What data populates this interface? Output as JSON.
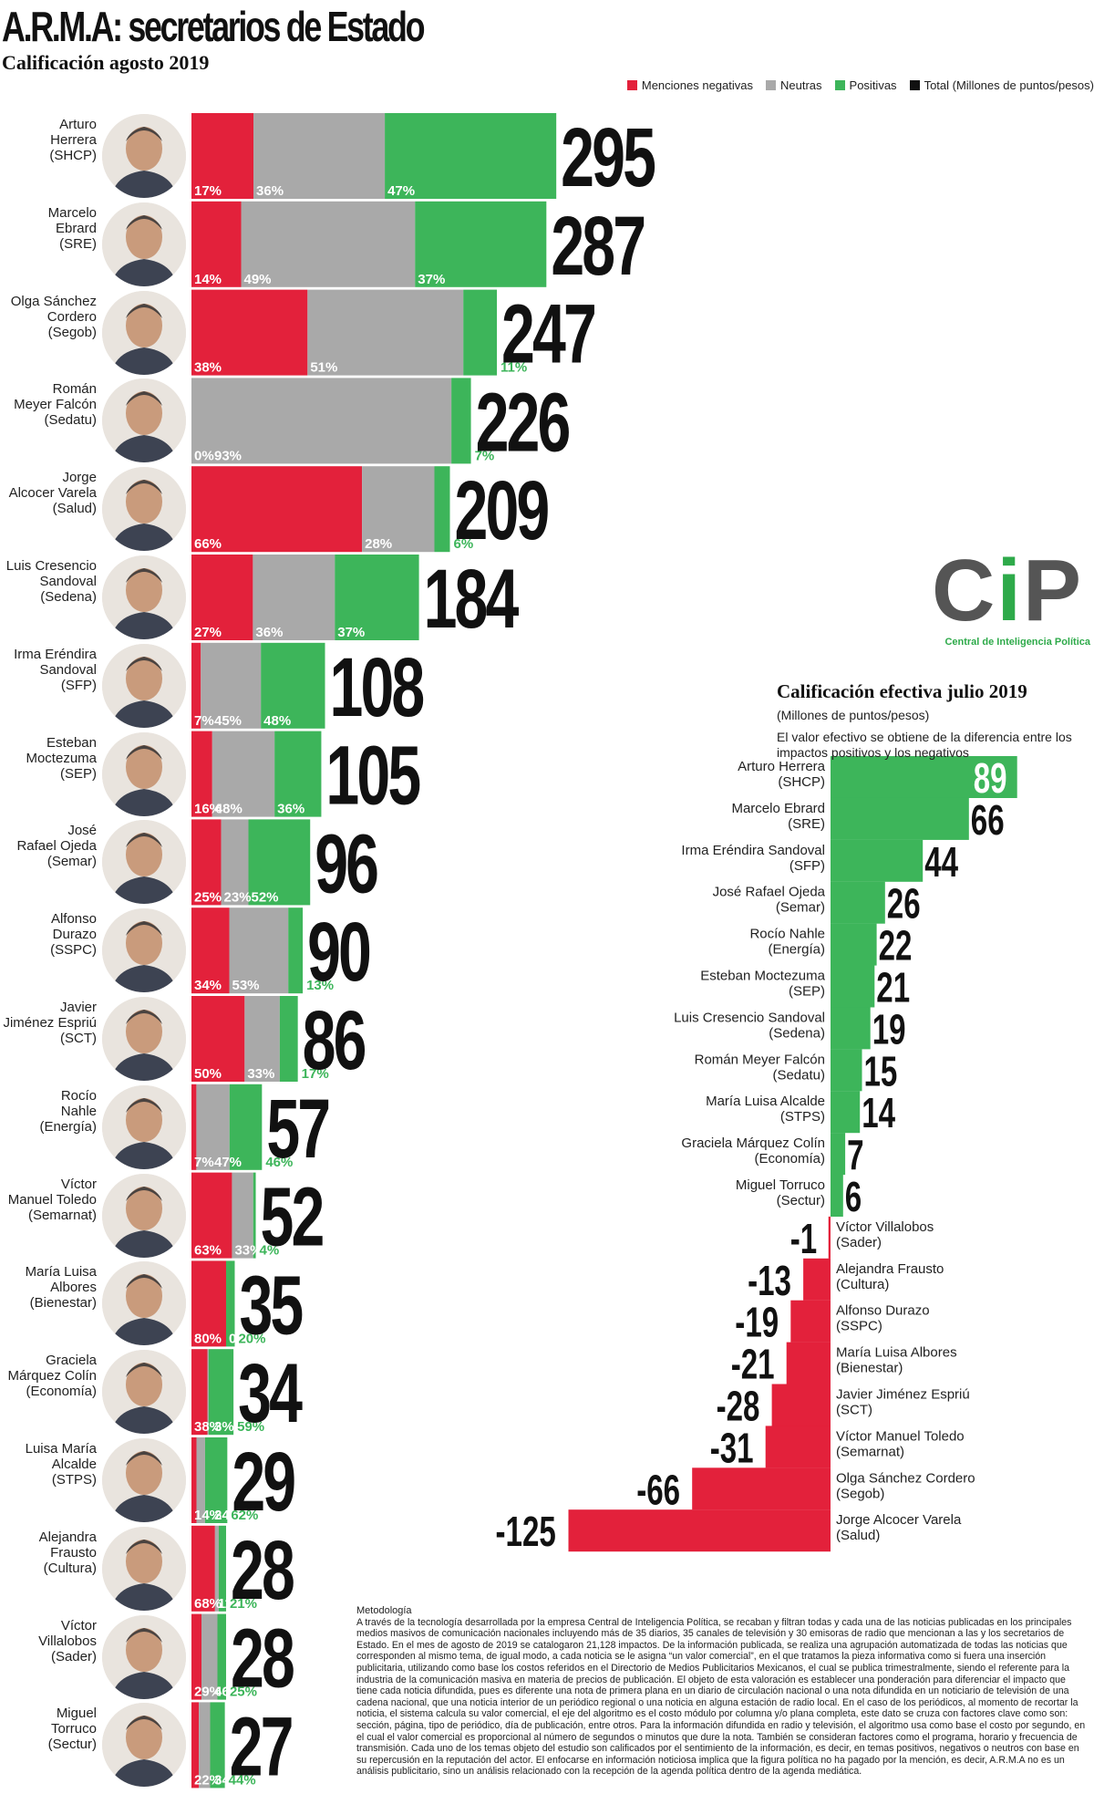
{
  "title": "A.R.M.A: secretarios de Estado",
  "subtitle": "Calificación agosto 2019",
  "legend": [
    {
      "label": "Menciones negativas",
      "color": "#e3213b"
    },
    {
      "label": "Neutras",
      "color": "#a9a9a9"
    },
    {
      "label": "Positivas",
      "color": "#3db55a"
    },
    {
      "label": "Total (Millones de puntos/pesos)",
      "color": "#111111"
    }
  ],
  "colors": {
    "negative": "#e3213b",
    "neutral": "#a9a9a9",
    "positive": "#3db55a",
    "total": "#111111"
  },
  "logo": {
    "text": "CiP",
    "subtitle": "Central de Inteligencia Política"
  },
  "chart_data": [
    {
      "type": "bar",
      "orientation": "horizontal",
      "stacked": true,
      "series_names": [
        "Menciones negativas",
        "Neutras",
        "Positivas"
      ],
      "total_label": "Total (Millones de puntos/pesos)",
      "rows": [
        {
          "name": "Arturo Herrera (SHCP)",
          "label_lines": [
            "Arturo",
            "Herrera",
            "(SHCP)"
          ],
          "total": 295,
          "negative": 17,
          "neutral": 36,
          "positive": 47
        },
        {
          "name": "Marcelo Ebrard (SRE)",
          "label_lines": [
            "Marcelo",
            "Ebrard",
            "(SRE)"
          ],
          "total": 287,
          "negative": 14,
          "neutral": 49,
          "positive": 37
        },
        {
          "name": "Olga Sánchez Cordero (Segob)",
          "label_lines": [
            "Olga Sánchez",
            "Cordero",
            "(Segob)"
          ],
          "total": 247,
          "negative": 38,
          "neutral": 51,
          "positive": 11
        },
        {
          "name": "Román Meyer Falcón (Sedatu)",
          "label_lines": [
            "Román",
            "Meyer Falcón",
            "(Sedatu)"
          ],
          "total": 226,
          "negative": 0,
          "neutral": 93,
          "positive": 7
        },
        {
          "name": "Jorge Alcocer Varela (Salud)",
          "label_lines": [
            "Jorge",
            "Alcocer Varela",
            "(Salud)"
          ],
          "total": 209,
          "negative": 66,
          "neutral": 28,
          "positive": 6
        },
        {
          "name": "Luis Cresencio Sandoval (Sedena)",
          "label_lines": [
            "Luis Cresencio",
            "Sandoval",
            "(Sedena)"
          ],
          "total": 184,
          "negative": 27,
          "neutral": 36,
          "positive": 37
        },
        {
          "name": "Irma Eréndira Sandoval (SFP)",
          "label_lines": [
            "Irma Eréndira",
            "Sandoval",
            "(SFP)"
          ],
          "total": 108,
          "negative": 7,
          "neutral": 45,
          "positive": 48
        },
        {
          "name": "Esteban Moctezuma (SEP)",
          "label_lines": [
            "Esteban",
            "Moctezuma",
            "(SEP)"
          ],
          "total": 105,
          "negative": 16,
          "neutral": 48,
          "positive": 36
        },
        {
          "name": "José Rafael Ojeda (Semar)",
          "label_lines": [
            "José",
            "Rafael Ojeda",
            "(Semar)"
          ],
          "total": 96,
          "negative": 25,
          "neutral": 23,
          "positive": 52
        },
        {
          "name": "Alfonso Durazo (SSPC)",
          "label_lines": [
            "Alfonso",
            "Durazo",
            "(SSPC)"
          ],
          "total": 90,
          "negative": 34,
          "neutral": 53,
          "positive": 13
        },
        {
          "name": "Javier Jiménez Espriú (SCT)",
          "label_lines": [
            "Javier",
            "Jiménez Espriú",
            "(SCT)"
          ],
          "total": 86,
          "negative": 50,
          "neutral": 33,
          "positive": 17
        },
        {
          "name": "Rocío Nahle (Energía)",
          "label_lines": [
            "Rocío",
            "Nahle",
            "(Energía)"
          ],
          "total": 57,
          "negative": 7,
          "neutral": 47,
          "positive": 46
        },
        {
          "name": "Víctor Manuel Toledo (Semarnat)",
          "label_lines": [
            "Víctor",
            "Manuel Toledo",
            "(Semarnat)"
          ],
          "total": 52,
          "negative": 63,
          "neutral": 33,
          "positive": 4
        },
        {
          "name": "María Luisa Albores (Bienestar)",
          "label_lines": [
            "María Luisa",
            "Albores",
            "(Bienestar)"
          ],
          "total": 35,
          "negative": 80,
          "neutral": 0,
          "positive": 20
        },
        {
          "name": "Graciela Márquez Colín (Economía)",
          "label_lines": [
            "Graciela",
            "Márquez Colín",
            "(Economía)"
          ],
          "total": 34,
          "negative": 38,
          "neutral": 3,
          "positive": 59
        },
        {
          "name": "Luisa María Alcalde (STPS)",
          "label_lines": [
            "Luisa María",
            "Alcalde",
            "(STPS)"
          ],
          "total": 29,
          "negative": 14,
          "neutral": 24,
          "positive": 62
        },
        {
          "name": "Alejandra Frausto (Cultura)",
          "label_lines": [
            "Alejandra",
            "Frausto",
            "(Cultura)"
          ],
          "total": 28,
          "negative": 68,
          "neutral": 11,
          "positive": 21
        },
        {
          "name": "Víctor Villalobos (Sader)",
          "label_lines": [
            "Víctor",
            "Villalobos",
            "(Sader)"
          ],
          "total": 28,
          "negative": 29,
          "neutral": 46,
          "positive": 25
        },
        {
          "name": "Miguel Torruco (Sectur)",
          "label_lines": [
            "Miguel",
            "Torruco",
            "(Sectur)"
          ],
          "total": 27,
          "negative": 22,
          "neutral": 34,
          "positive": 44
        }
      ]
    },
    {
      "type": "bar",
      "orientation": "horizontal",
      "title": "Calificación efectiva julio 2019",
      "units": "(Millones de puntos/pesos)",
      "description": "El valor efectivo se obtiene de la diferencia entre los impactos positivos y los negativos",
      "rows": [
        {
          "label_lines": [
            "Arturo Herrera",
            "(SHCP)"
          ],
          "value": 89
        },
        {
          "label_lines": [
            "Marcelo Ebrard",
            "(SRE)"
          ],
          "value": 66
        },
        {
          "label_lines": [
            "Irma Eréndira Sandoval",
            "(SFP)"
          ],
          "value": 44
        },
        {
          "label_lines": [
            "José Rafael Ojeda",
            "(Semar)"
          ],
          "value": 26
        },
        {
          "label_lines": [
            "Rocío Nahle",
            "(Energía)"
          ],
          "value": 22
        },
        {
          "label_lines": [
            "Esteban Moctezuma",
            "(SEP)"
          ],
          "value": 21
        },
        {
          "label_lines": [
            "Luis Cresencio Sandoval",
            "(Sedena)"
          ],
          "value": 19
        },
        {
          "label_lines": [
            "Román Meyer Falcón",
            "(Sedatu)"
          ],
          "value": 15
        },
        {
          "label_lines": [
            "María Luisa Alcalde",
            "(STPS)"
          ],
          "value": 14
        },
        {
          "label_lines": [
            "Graciela Márquez Colín",
            "(Economía)"
          ],
          "value": 7
        },
        {
          "label_lines": [
            "Miguel Torruco",
            "(Sectur)"
          ],
          "value": 6
        },
        {
          "label_lines": [
            "Víctor Villalobos",
            "(Sader)"
          ],
          "value": -1
        },
        {
          "label_lines": [
            "Alejandra Frausto",
            "(Cultura)"
          ],
          "value": -13
        },
        {
          "label_lines": [
            "Alfonso Durazo",
            "(SSPC)"
          ],
          "value": -19
        },
        {
          "label_lines": [
            "María Luisa Albores",
            "(Bienestar)"
          ],
          "value": -21
        },
        {
          "label_lines": [
            "Javier Jiménez Espriú",
            "(SCT)"
          ],
          "value": -28
        },
        {
          "label_lines": [
            "Víctor Manuel Toledo",
            "(Semarnat)"
          ],
          "value": -31
        },
        {
          "label_lines": [
            "Olga Sánchez Cordero",
            "(Segob)"
          ],
          "value": -66
        },
        {
          "label_lines": [
            "Jorge Alcocer Varela",
            "(Salud)"
          ],
          "value": -125
        }
      ]
    }
  ],
  "methodology": {
    "title": "Metodología",
    "text": "A través de la tecnología desarrollada por la empresa Central de Inteligencia Política, se recaban y filtran todas y cada una de las noticias publicadas en los principales medios masivos de comunicación nacionales incluyendo más de 35 diarios, 35 canales de televisión y 30 emisoras de radio que mencionan a las y los secretarios de Estado. En el mes de agosto de 2019 se catalogaron 21,128 impactos. De la información publicada, se realiza una agrupación automatizada de todas las noticias que corresponden al mismo tema, de igual modo, a cada noticia se le asigna “un valor comercial”, en el que tratamos la pieza informativa como si fuera una inserción publicitaria, utilizando como base los costos referidos en el Directorio de Medios Publicitarios Mexicanos, el cual se publica trimestralmente, siendo el referente para la industria de la comunicación masiva en materia de precios de publicación. El objeto de esta valoración es establecer una ponderación para diferenciar el impacto que tiene cada noticia difundida, pues es diferente una nota de primera plana en un diario de circulación nacional o una nota difundida en un noticiario de televisión de una cadena nacional, que una noticia interior de un periódico regional o una noticia en alguna estación de radio local. En el caso de los periódicos, al momento de recortar la noticia, el sistema calcula su valor comercial, el eje del algoritmo es el costo módulo por columna y/o plana completa, este dato se cruza con factores clave como son: sección, página, tipo de periódico, día de publicación, entre otros. Para la información difundida en radio y televisión, el algoritmo usa como base el costo por segundo, en el cual el valor comercial es proporcional al número de segundos o minutos que dure la nota. También se consideran factores como el programa, horario y frecuencia de transmisión. Cada uno de los temas objeto del estudio son calificados por el sentimiento de la información, es decir, en temas positivos, negativos o neutros con base en su repercusión en la reputación del actor. El enfocarse en información noticiosa implica que la figura política no ha pagado por la mención, es decir, A.R.M.A no es un análisis publicitario, sino un análisis relacionado con la recepción de la agenda política dentro de la agenda mediática."
  }
}
